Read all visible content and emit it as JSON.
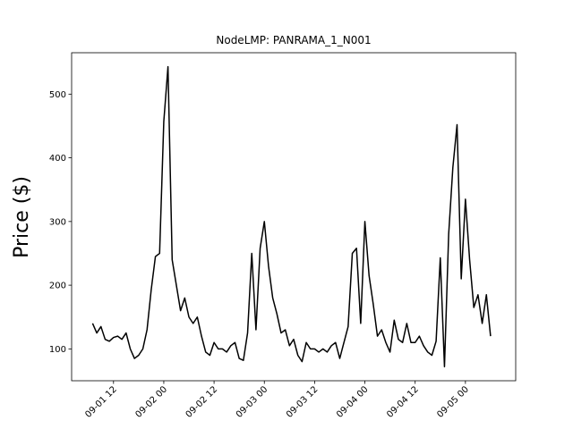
{
  "chart_data": {
    "type": "line",
    "title": "NodeLMP: PANRAMA_1_N001",
    "y_label": "Price ($)",
    "x": [
      "09-01 07",
      "09-01 08",
      "09-01 09",
      "09-01 10",
      "09-01 11",
      "09-01 12",
      "09-01 13",
      "09-01 14",
      "09-01 15",
      "09-01 16",
      "09-01 17",
      "09-01 18",
      "09-01 19",
      "09-01 20",
      "09-01 21",
      "09-01 22",
      "09-01 23",
      "09-02 00",
      "09-02 01",
      "09-02 02",
      "09-02 03",
      "09-02 04",
      "09-02 05",
      "09-02 06",
      "09-02 07",
      "09-02 08",
      "09-02 09",
      "09-02 10",
      "09-02 11",
      "09-02 12",
      "09-02 13",
      "09-02 14",
      "09-02 15",
      "09-02 16",
      "09-02 17",
      "09-02 18",
      "09-02 19",
      "09-02 20",
      "09-02 21",
      "09-02 22",
      "09-02 23",
      "09-03 00",
      "09-03 01",
      "09-03 02",
      "09-03 03",
      "09-03 04",
      "09-03 05",
      "09-03 06",
      "09-03 07",
      "09-03 08",
      "09-03 09",
      "09-03 10",
      "09-03 11",
      "09-03 12",
      "09-03 13",
      "09-03 14",
      "09-03 15",
      "09-03 16",
      "09-03 17",
      "09-03 18",
      "09-03 19",
      "09-03 20",
      "09-03 21",
      "09-03 22",
      "09-03 23",
      "09-04 00",
      "09-04 01",
      "09-04 02",
      "09-04 03",
      "09-04 04",
      "09-04 05",
      "09-04 06",
      "09-04 07",
      "09-04 08",
      "09-04 09",
      "09-04 10",
      "09-04 11",
      "09-04 12",
      "09-04 13",
      "09-04 14",
      "09-04 15",
      "09-04 16",
      "09-04 17",
      "09-04 18",
      "09-04 19",
      "09-04 20",
      "09-04 21",
      "09-04 22",
      "09-04 23",
      "09-05 00",
      "09-05 01",
      "09-05 02",
      "09-05 03",
      "09-05 04",
      "09-05 05",
      "09-05 06"
    ],
    "series": [
      {
        "color": "#000000",
        "values": [
          140,
          125,
          135,
          115,
          112,
          118,
          120,
          115,
          125,
          100,
          85,
          90,
          100,
          130,
          193,
          245,
          250,
          457,
          543,
          240,
          200,
          160,
          180,
          150,
          140,
          150,
          120,
          95,
          90,
          110,
          100,
          100,
          95,
          105,
          110,
          85,
          82,
          125,
          250,
          130,
          258,
          300,
          230,
          180,
          155,
          125,
          130,
          105,
          115,
          90,
          80,
          110,
          100,
          100,
          95,
          100,
          95,
          105,
          110,
          85,
          110,
          135,
          250,
          258,
          140,
          300,
          215,
          170,
          120,
          130,
          110,
          95,
          145,
          115,
          110,
          140,
          110,
          110,
          120,
          105,
          95,
          90,
          112,
          243,
          72,
          280,
          385,
          452,
          210,
          335,
          240,
          165,
          185,
          140,
          185,
          120
        ]
      }
    ],
    "xlim": [
      "09-01 02",
      "09-05 12"
    ],
    "xticks": [
      "09-01 12",
      "09-02 00",
      "09-02 12",
      "09-03 00",
      "09-03 12",
      "09-04 00",
      "09-04 12",
      "09-05 00"
    ],
    "ylim": [
      50,
      565
    ],
    "yticks": [
      100,
      200,
      300,
      400,
      500
    ]
  }
}
